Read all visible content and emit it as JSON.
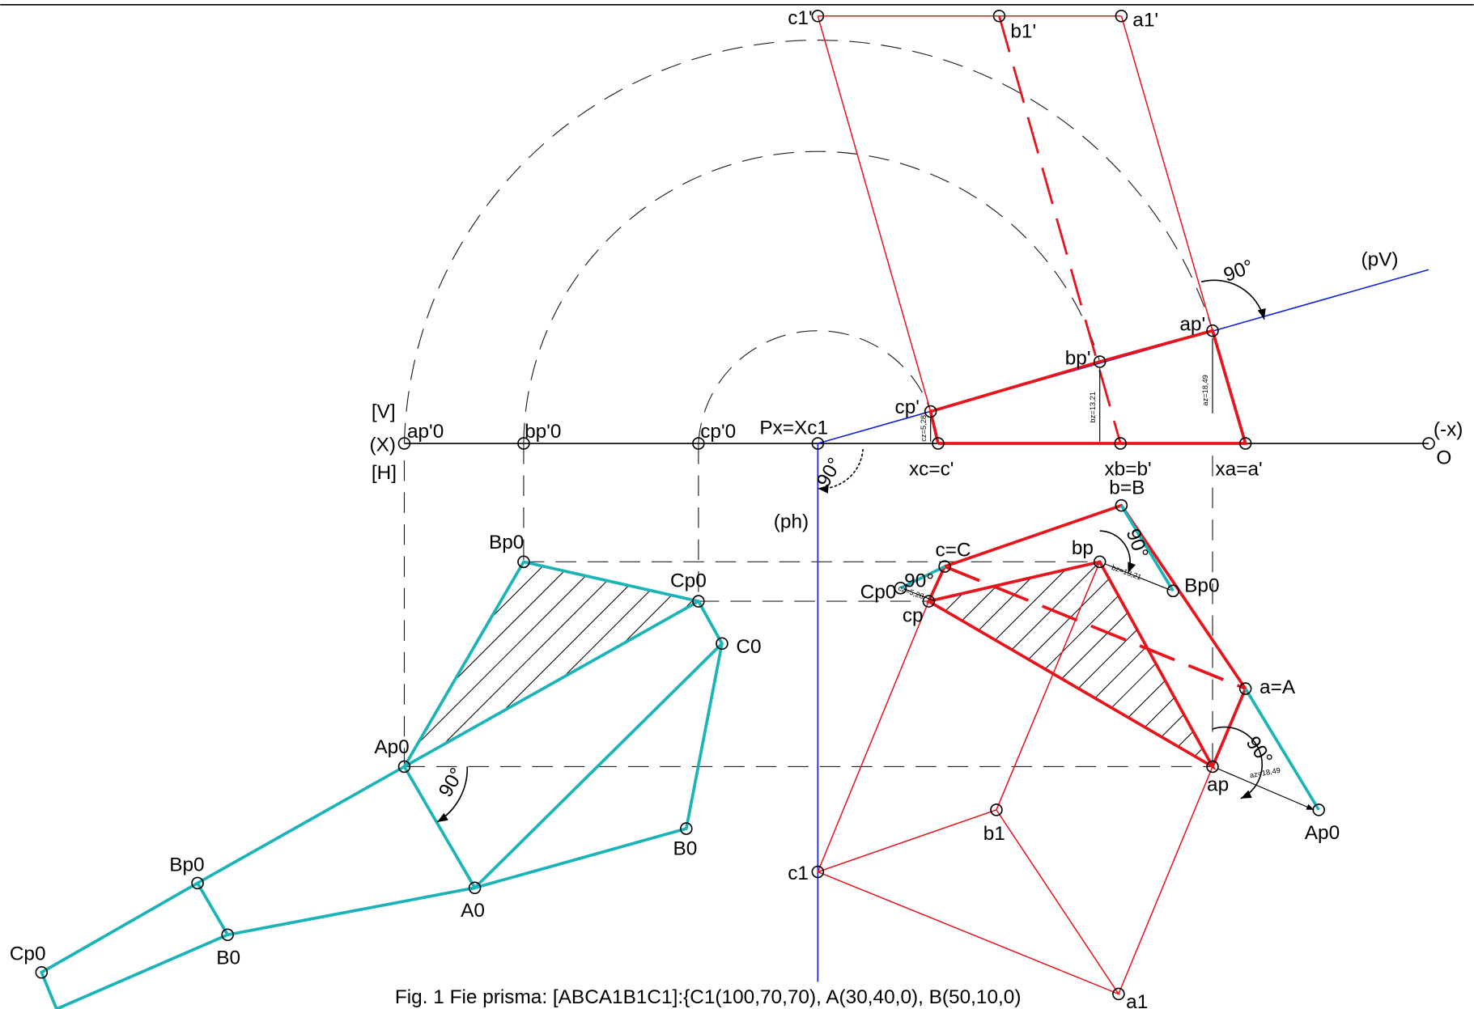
{
  "labels": [
    "c1'",
    "b1'",
    "a1'",
    "(pV)",
    "90°",
    "ap'",
    "bp'",
    "cp'",
    "[V]",
    "(X)",
    "[H]",
    "ap'0",
    "bp'0",
    "cp'0",
    "Px=Xc1",
    "(-x)",
    "O",
    "xc=c'",
    "xb=b'",
    "xa=a'",
    "90°",
    "(ph)",
    "b=B",
    "Bp0",
    "Cp0",
    "C0",
    "bp",
    "90°",
    "c=C",
    "Cp0",
    "90°",
    "cp",
    "Bp0",
    "a=A",
    "Ap0",
    "90°",
    "90°",
    "ap",
    "Ap0",
    "B0",
    "b1",
    "Bp0",
    "c1",
    "A0",
    "Cp0",
    "B0",
    "a1"
  ],
  "dimensions": [
    "cz=5,28",
    "bz=13,21",
    "az=18,49",
    "bz=13,21",
    "cz=5,28",
    "az=18,49"
  ],
  "caption": "Fig. 1 Fie prisma: [ABCA1B1C1]:{C1(100,70,70), A(30,40,0), B(50,10,0)"
}
